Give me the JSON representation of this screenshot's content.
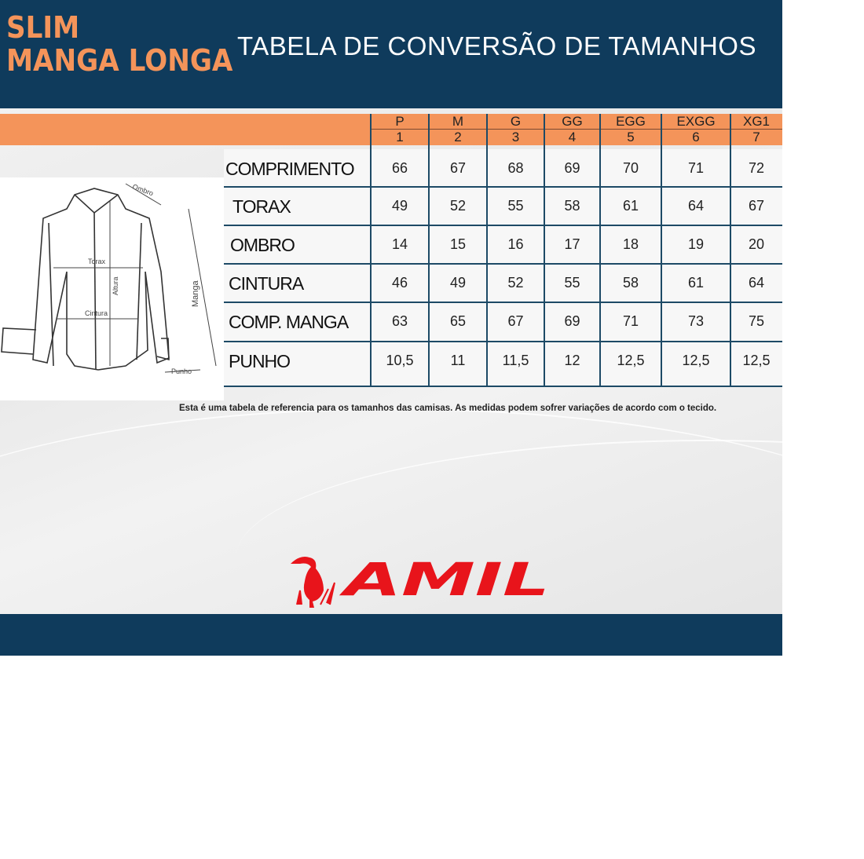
{
  "header": {
    "brand_line1": "SLIM",
    "brand_line2": "MANGA LONGA",
    "title": "TABELA DE CONVERSÃO DE TAMANHOS"
  },
  "sizes": [
    {
      "label": "P",
      "number": "1"
    },
    {
      "label": "M",
      "number": "2"
    },
    {
      "label": "G",
      "number": "3"
    },
    {
      "label": "GG",
      "number": "4"
    },
    {
      "label": "EGG",
      "number": "5"
    },
    {
      "label": "EXGG",
      "number": "6"
    },
    {
      "label": "XG1",
      "number": "7"
    }
  ],
  "rows": [
    {
      "label": "COMPRIMENTO",
      "values": [
        "66",
        "67",
        "68",
        "69",
        "70",
        "71",
        "72"
      ]
    },
    {
      "label": "TORAX",
      "values": [
        "49",
        "52",
        "55",
        "58",
        "61",
        "64",
        "67"
      ]
    },
    {
      "label": "OMBRO",
      "values": [
        "14",
        "15",
        "16",
        "17",
        "18",
        "19",
        "20"
      ]
    },
    {
      "label": "CINTURA",
      "values": [
        "46",
        "49",
        "52",
        "55",
        "58",
        "61",
        "64"
      ]
    },
    {
      "label": "COMP. MANGA",
      "values": [
        "63",
        "65",
        "67",
        "69",
        "71",
        "73",
        "75"
      ]
    },
    {
      "label": "PUNHO",
      "values": [
        "10,5",
        "11",
        "11,5",
        "12",
        "12,5",
        "12,5",
        "12,5"
      ]
    }
  ],
  "diagram": {
    "ombro": "Ombro",
    "torax": "Torax",
    "altura": "Altura",
    "cintura": "Cintura",
    "manga": "Manga",
    "punho": "Punho"
  },
  "note": "Esta é uma tabela de referencia para os tamanhos das camisas. As medidas podem sofrer variações de acordo com o tecido.",
  "logo": {
    "text": "AMIL",
    "color": "#e8141b"
  },
  "colors": {
    "navy": "#0f3b5c",
    "orange": "#f4945a"
  }
}
